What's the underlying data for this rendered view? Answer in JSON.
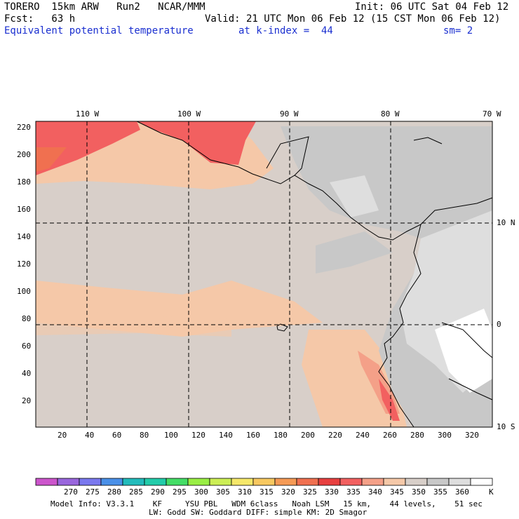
{
  "header": {
    "model": "TORERO  15km ARW   Run2   NCAR/MMM",
    "init": "Init: 06 UTC Sat 04 Feb 12",
    "fcst": "Fcst:   63 h",
    "valid": "Valid: 21 UTC Mon 06 Feb 12 (15 CST Mon 06 Feb 12)",
    "field": "Equivalent potential temperature",
    "level": "at k-index =  44",
    "smooth": "sm= 2"
  },
  "map": {
    "lon_labels": [
      "110 W",
      "100 W",
      "90 W",
      "80 W",
      "70 W"
    ],
    "lat_labels": [
      "10 N",
      "0",
      "10 S"
    ],
    "y_ticks": [
      "220",
      "200",
      "180",
      "160",
      "140",
      "120",
      "100",
      "80",
      "60",
      "40",
      "20"
    ],
    "x_ticks": [
      "20",
      "40",
      "60",
      "80",
      "100",
      "120",
      "140",
      "160",
      "180",
      "200",
      "220",
      "240",
      "260",
      "280",
      "300",
      "320"
    ]
  },
  "colorbar": {
    "labels": [
      "270",
      "275",
      "280",
      "285",
      "290",
      "295",
      "300",
      "305",
      "310",
      "315",
      "320",
      "325",
      "330",
      "335",
      "340",
      "345",
      "350",
      "355",
      "360"
    ],
    "unit": "K",
    "colors": [
      "#cc55cc",
      "#9966dd",
      "#7a78ee",
      "#4a90e8",
      "#22bbbb",
      "#22ccaa",
      "#44dd66",
      "#99ee44",
      "#ccee55",
      "#f5e86a",
      "#f7c860",
      "#f59a55",
      "#f07050",
      "#e84040",
      "#f26060",
      "#f4a088",
      "#f5c8a8",
      "#d8cfc9",
      "#c8c8c8",
      "#dedede",
      "#ffffff"
    ]
  },
  "footer": {
    "line1": "Model Info: V3.3.1    KF     YSU PBL   WDM 6class   Noah LSM   15 km,    44 levels,    51 sec",
    "line2": "LW: Godd SW: Goddard DIFF: simple KM: 2D Smagor"
  }
}
